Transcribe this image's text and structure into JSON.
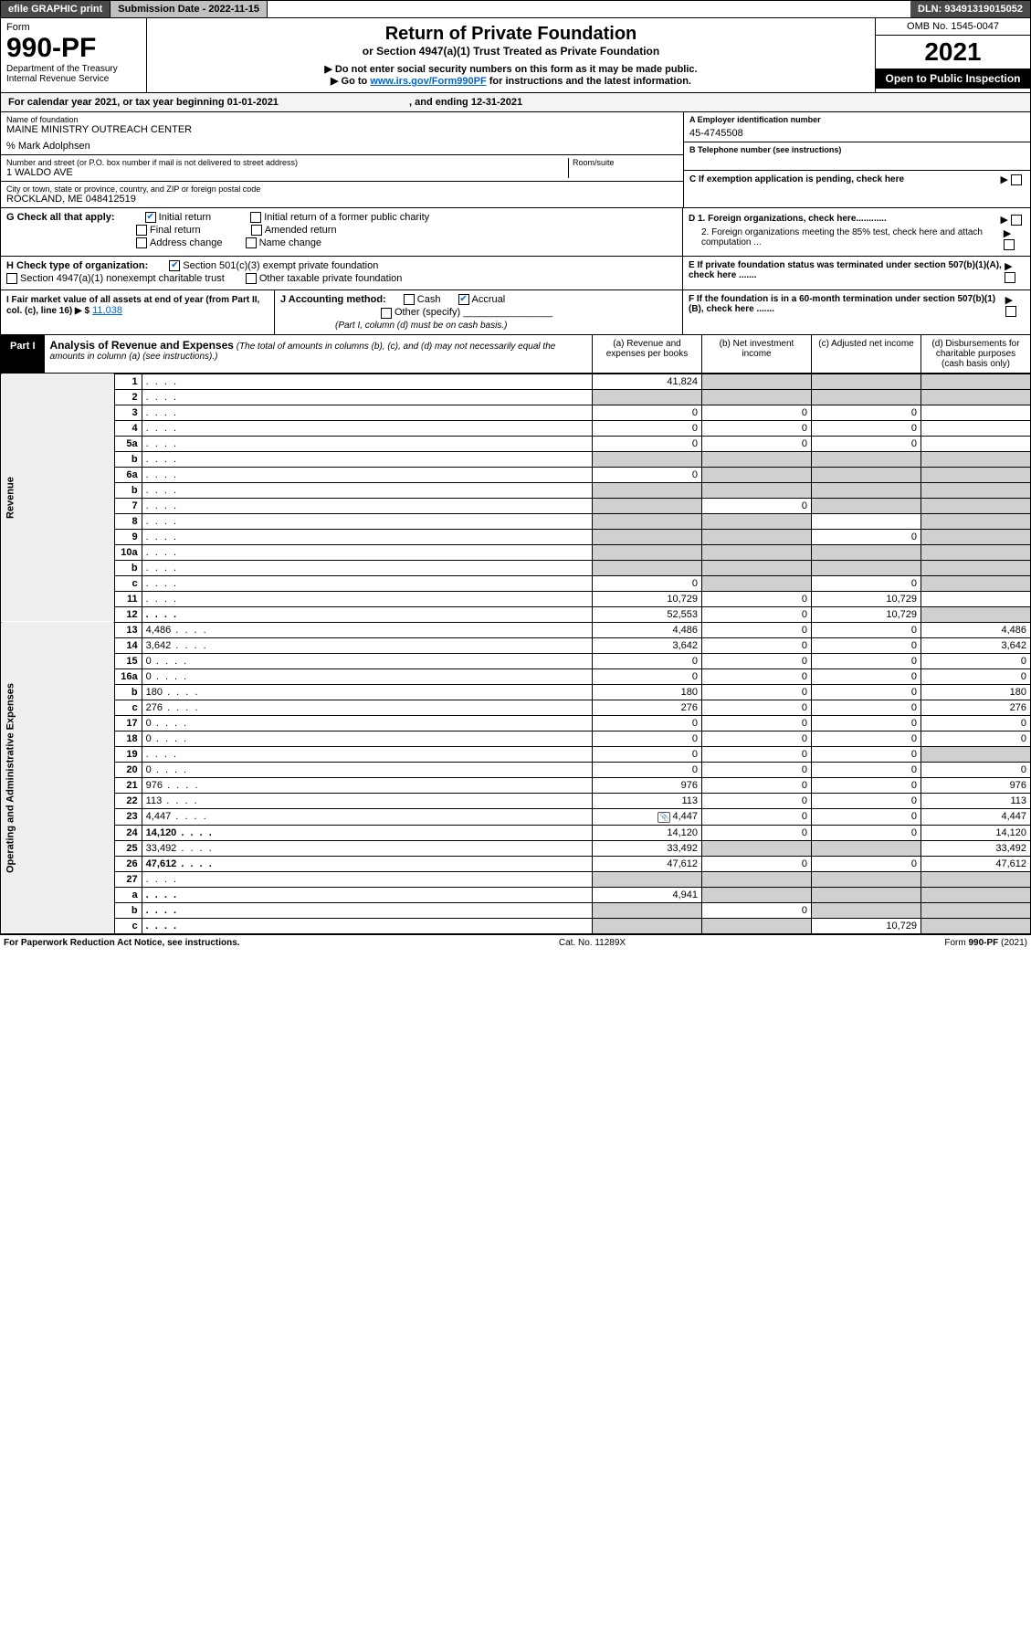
{
  "topbar": {
    "efile": "efile GRAPHIC print",
    "sub_label": "Submission Date - 2022-11-15",
    "dln": "DLN: 93491319015052"
  },
  "header": {
    "form_word": "Form",
    "form_num": "990-PF",
    "dept": "Department of the Treasury",
    "irs": "Internal Revenue Service",
    "title": "Return of Private Foundation",
    "subtitle": "or Section 4947(a)(1) Trust Treated as Private Foundation",
    "instr1": "▶ Do not enter social security numbers on this form as it may be made public.",
    "instr2_pre": "▶ Go to ",
    "instr2_link": "www.irs.gov/Form990PF",
    "instr2_post": " for instructions and the latest information.",
    "omb": "OMB No. 1545-0047",
    "year": "2021",
    "open": "Open to Public Inspection"
  },
  "cal": {
    "text_pre": "For calendar year 2021, or tax year beginning ",
    "begin": "01-01-2021",
    "mid": " , and ending ",
    "end": "12-31-2021"
  },
  "info": {
    "name_label": "Name of foundation",
    "name": "MAINE MINISTRY OUTREACH CENTER",
    "care_of": "% Mark Adolphsen",
    "addr_label": "Number and street (or P.O. box number if mail is not delivered to street address)",
    "addr": "1 WALDO AVE",
    "room_label": "Room/suite",
    "city_label": "City or town, state or province, country, and ZIP or foreign postal code",
    "city": "ROCKLAND, ME  048412519",
    "a_label": "A Employer identification number",
    "a_val": "45-4745508",
    "b_label": "B Telephone number (see instructions)",
    "c_label": "C If exemption application is pending, check here",
    "d1": "D 1. Foreign organizations, check here............",
    "d2": "2. Foreign organizations meeting the 85% test, check here and attach computation ...",
    "e": "E  If private foundation status was terminated under section 507(b)(1)(A), check here .......",
    "f": "F  If the foundation is in a 60-month termination under section 507(b)(1)(B), check here .......",
    "g_label": "G Check all that apply:",
    "g_opts": [
      "Initial return",
      "Final return",
      "Address change",
      "Initial return of a former public charity",
      "Amended return",
      "Name change"
    ],
    "h_label": "H Check type of organization:",
    "h_opts": [
      "Section 501(c)(3) exempt private foundation",
      "Section 4947(a)(1) nonexempt charitable trust",
      "Other taxable private foundation"
    ],
    "i_label": "I Fair market value of all assets at end of year (from Part II, col. (c), line 16) ▶ $",
    "i_val": "11,038",
    "j_label": "J Accounting method:",
    "j_cash": "Cash",
    "j_accrual": "Accrual",
    "j_other": "Other (specify)",
    "j_note": "(Part I, column (d) must be on cash basis.)"
  },
  "part1": {
    "badge": "Part I",
    "title": "Analysis of Revenue and Expenses",
    "note": "(The total of amounts in columns (b), (c), and (d) may not necessarily equal the amounts in column (a) (see instructions).)",
    "col_a": "(a)  Revenue and expenses per books",
    "col_b": "(b)  Net investment income",
    "col_c": "(c)  Adjusted net income",
    "col_d": "(d)  Disbursements for charitable purposes (cash basis only)"
  },
  "sections": {
    "rev": "Revenue",
    "exp": "Operating and Administrative Expenses"
  },
  "rows": [
    {
      "n": "1",
      "d": "",
      "a": "41,824",
      "b": "",
      "c": "",
      "shade": [
        "b",
        "c",
        "d"
      ]
    },
    {
      "n": "2",
      "d": "",
      "a": "",
      "b": "",
      "c": "",
      "shade": [
        "a",
        "b",
        "c",
        "d"
      ]
    },
    {
      "n": "3",
      "d": "",
      "a": "0",
      "b": "0",
      "c": "0"
    },
    {
      "n": "4",
      "d": "",
      "a": "0",
      "b": "0",
      "c": "0"
    },
    {
      "n": "5a",
      "d": "",
      "a": "0",
      "b": "0",
      "c": "0"
    },
    {
      "n": "b",
      "d": "",
      "a": "",
      "b": "",
      "c": "",
      "shade": [
        "a",
        "b",
        "c",
        "d"
      ]
    },
    {
      "n": "6a",
      "d": "",
      "a": "0",
      "b": "",
      "c": "",
      "shade": [
        "b",
        "c",
        "d"
      ]
    },
    {
      "n": "b",
      "d": "",
      "a": "",
      "b": "",
      "c": "",
      "shade": [
        "a",
        "b",
        "c",
        "d"
      ]
    },
    {
      "n": "7",
      "d": "",
      "a": "",
      "b": "0",
      "c": "",
      "shade": [
        "a",
        "c",
        "d"
      ]
    },
    {
      "n": "8",
      "d": "",
      "a": "",
      "b": "",
      "c": "",
      "shade": [
        "a",
        "b",
        "d"
      ]
    },
    {
      "n": "9",
      "d": "",
      "a": "",
      "b": "",
      "c": "0",
      "shade": [
        "a",
        "b",
        "d"
      ]
    },
    {
      "n": "10a",
      "d": "",
      "a": "",
      "b": "",
      "c": "",
      "shade": [
        "a",
        "b",
        "c",
        "d"
      ]
    },
    {
      "n": "b",
      "d": "",
      "a": "",
      "b": "",
      "c": "",
      "shade": [
        "a",
        "b",
        "c",
        "d"
      ]
    },
    {
      "n": "c",
      "d": "",
      "a": "0",
      "b": "",
      "c": "0",
      "shade": [
        "b",
        "d"
      ]
    },
    {
      "n": "11",
      "d": "",
      "a": "10,729",
      "b": "0",
      "c": "10,729"
    },
    {
      "n": "12",
      "d": "",
      "a": "52,553",
      "b": "0",
      "c": "10,729",
      "bold": true,
      "shade": [
        "d"
      ]
    }
  ],
  "exp_rows": [
    {
      "n": "13",
      "d": "4,486",
      "a": "4,486",
      "b": "0",
      "c": "0"
    },
    {
      "n": "14",
      "d": "3,642",
      "a": "3,642",
      "b": "0",
      "c": "0"
    },
    {
      "n": "15",
      "d": "0",
      "a": "0",
      "b": "0",
      "c": "0"
    },
    {
      "n": "16a",
      "d": "0",
      "a": "0",
      "b": "0",
      "c": "0"
    },
    {
      "n": "b",
      "d": "180",
      "a": "180",
      "b": "0",
      "c": "0"
    },
    {
      "n": "c",
      "d": "276",
      "a": "276",
      "b": "0",
      "c": "0"
    },
    {
      "n": "17",
      "d": "0",
      "a": "0",
      "b": "0",
      "c": "0"
    },
    {
      "n": "18",
      "d": "0",
      "a": "0",
      "b": "0",
      "c": "0"
    },
    {
      "n": "19",
      "d": "",
      "a": "0",
      "b": "0",
      "c": "0",
      "shade": [
        "d"
      ]
    },
    {
      "n": "20",
      "d": "0",
      "a": "0",
      "b": "0",
      "c": "0"
    },
    {
      "n": "21",
      "d": "976",
      "a": "976",
      "b": "0",
      "c": "0"
    },
    {
      "n": "22",
      "d": "113",
      "a": "113",
      "b": "0",
      "c": "0"
    },
    {
      "n": "23",
      "d": "4,447",
      "a": "4,447",
      "b": "0",
      "c": "0",
      "icon": true
    },
    {
      "n": "24",
      "d": "14,120",
      "a": "14,120",
      "b": "0",
      "c": "0",
      "bold": true
    },
    {
      "n": "25",
      "d": "33,492",
      "a": "33,492",
      "b": "",
      "c": "",
      "shade": [
        "b",
        "c"
      ]
    },
    {
      "n": "26",
      "d": "47,612",
      "a": "47,612",
      "b": "0",
      "c": "0",
      "bold": true
    },
    {
      "n": "27",
      "d": "",
      "a": "",
      "b": "",
      "c": "",
      "shade": [
        "a",
        "b",
        "c",
        "d"
      ]
    },
    {
      "n": "a",
      "d": "",
      "a": "4,941",
      "b": "",
      "c": "",
      "bold": true,
      "shade": [
        "b",
        "c",
        "d"
      ]
    },
    {
      "n": "b",
      "d": "",
      "a": "",
      "b": "0",
      "c": "",
      "bold": true,
      "shade": [
        "a",
        "c",
        "d"
      ]
    },
    {
      "n": "c",
      "d": "",
      "a": "",
      "b": "",
      "c": "10,729",
      "bold": true,
      "shade": [
        "a",
        "b",
        "d"
      ]
    }
  ],
  "footer": {
    "left": "For Paperwork Reduction Act Notice, see instructions.",
    "mid": "Cat. No. 11289X",
    "right": "Form 990-PF (2021)"
  },
  "colors": {
    "link": "#0066cc",
    "shade": "#d0d0d0",
    "darkbar": "#4a4a4a"
  }
}
